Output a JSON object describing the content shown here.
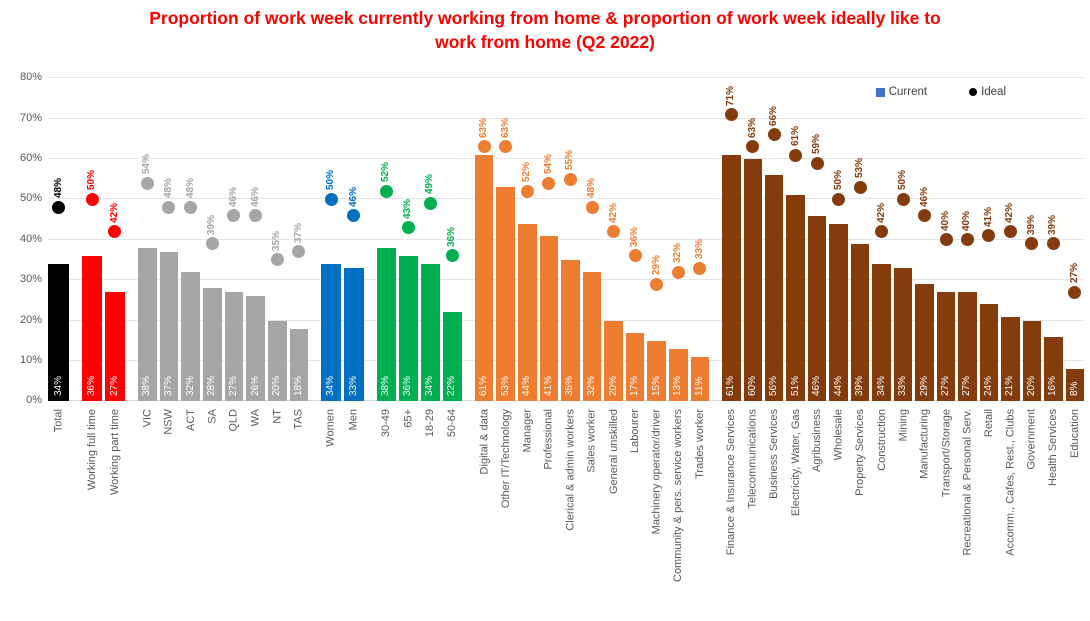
{
  "title": "Proportion of work week currently working from home & proportion of work week ideally like to work from home (Q2 2022)",
  "title_color": "#ff0000",
  "legend": {
    "current_label": "Current",
    "ideal_label": "Ideal",
    "current_color": "#4472c4",
    "ideal_color": "#000000"
  },
  "y_axis": {
    "ticks": [
      "0%",
      "10%",
      "20%",
      "30%",
      "40%",
      "50%",
      "60%",
      "70%",
      "80%"
    ],
    "max": 80
  },
  "chart_data": {
    "type": "bar",
    "title": "Proportion of work week currently working from home & proportion of work week ideally like to work from home (Q2 2022)",
    "ylabel": "",
    "ylim": [
      0,
      80
    ],
    "grid": true,
    "legend_position": "top-right",
    "series_encoding": {
      "bar": "Current (% of work week)",
      "dot": "Ideal (% of work week)"
    },
    "groups": [
      {
        "id": "total",
        "color": "#000000",
        "items": [
          {
            "label": "Total",
            "current": 34,
            "ideal": 48
          }
        ]
      },
      {
        "id": "employment",
        "color": "#ff0000",
        "items": [
          {
            "label": "Working full time",
            "current": 36,
            "ideal": 50
          },
          {
            "label": "Working part time",
            "current": 27,
            "ideal": 42
          }
        ]
      },
      {
        "id": "state",
        "color": "#a6a6a6",
        "items": [
          {
            "label": "VIC",
            "current": 38,
            "ideal": 54
          },
          {
            "label": "NSW",
            "current": 37,
            "ideal": 48
          },
          {
            "label": "ACT",
            "current": 32,
            "ideal": 48
          },
          {
            "label": "SA",
            "current": 28,
            "ideal": 39
          },
          {
            "label": "QLD",
            "current": 27,
            "ideal": 46
          },
          {
            "label": "WA",
            "current": 26,
            "ideal": 46
          },
          {
            "label": "NT",
            "current": 20,
            "ideal": 35
          },
          {
            "label": "TAS",
            "current": 18,
            "ideal": 37
          }
        ]
      },
      {
        "id": "gender",
        "color": "#0070c0",
        "items": [
          {
            "label": "Women",
            "current": 34,
            "ideal": 50
          },
          {
            "label": "Men",
            "current": 33,
            "ideal": 46
          }
        ]
      },
      {
        "id": "age",
        "color": "#00b050",
        "items": [
          {
            "label": "30-49",
            "current": 38,
            "ideal": 52
          },
          {
            "label": "65+",
            "current": 36,
            "ideal": 43
          },
          {
            "label": "18-29",
            "current": 34,
            "ideal": 49
          },
          {
            "label": "50-64",
            "current": 22,
            "ideal": 36
          }
        ]
      },
      {
        "id": "occupation",
        "color": "#ed7d31",
        "items": [
          {
            "label": "Digital & data",
            "current": 61,
            "ideal": 63
          },
          {
            "label": "Other IT/Technology",
            "current": 53,
            "ideal": 63
          },
          {
            "label": "Manager",
            "current": 44,
            "ideal": 52
          },
          {
            "label": "Professional",
            "current": 41,
            "ideal": 54
          },
          {
            "label": "Clerical & admin workers",
            "current": 35,
            "ideal": 55
          },
          {
            "label": "Sales worker",
            "current": 32,
            "ideal": 48
          },
          {
            "label": "General unskilled",
            "current": 20,
            "ideal": 42
          },
          {
            "label": "Labourer",
            "current": 17,
            "ideal": 36
          },
          {
            "label": "Machinery operator/driver",
            "current": 15,
            "ideal": 29
          },
          {
            "label": "Community & pers. service workers",
            "current": 13,
            "ideal": 32
          },
          {
            "label": "Trades worker",
            "current": 11,
            "ideal": 33
          }
        ]
      },
      {
        "id": "industry",
        "color": "#843c0c",
        "items": [
          {
            "label": "Finance & Insurance Services",
            "current": 61,
            "ideal": 71
          },
          {
            "label": "Telecommunications",
            "current": 60,
            "ideal": 63
          },
          {
            "label": "Business Services",
            "current": 56,
            "ideal": 66
          },
          {
            "label": "Electricity, Water, Gas",
            "current": 51,
            "ideal": 61
          },
          {
            "label": "Agribusiness",
            "current": 46,
            "ideal": 59
          },
          {
            "label": "Wholesale",
            "current": 44,
            "ideal": 50
          },
          {
            "label": "Property Services",
            "current": 39,
            "ideal": 53
          },
          {
            "label": "Construction",
            "current": 34,
            "ideal": 42
          },
          {
            "label": "Mining",
            "current": 33,
            "ideal": 50
          },
          {
            "label": "Manufacturing",
            "current": 29,
            "ideal": 46
          },
          {
            "label": "Transport/Storage",
            "current": 27,
            "ideal": 40
          },
          {
            "label": "Recreational & Personal Serv.",
            "current": 27,
            "ideal": 40
          },
          {
            "label": "Retail",
            "current": 24,
            "ideal": 41
          },
          {
            "label": "Accomm., Cafes, Rest., Clubs",
            "current": 21,
            "ideal": 42
          },
          {
            "label": "Government",
            "current": 20,
            "ideal": 39
          },
          {
            "label": "Health Services",
            "current": 16,
            "ideal": 39
          },
          {
            "label": "Education",
            "current": 8,
            "ideal": 27
          }
        ]
      }
    ]
  }
}
